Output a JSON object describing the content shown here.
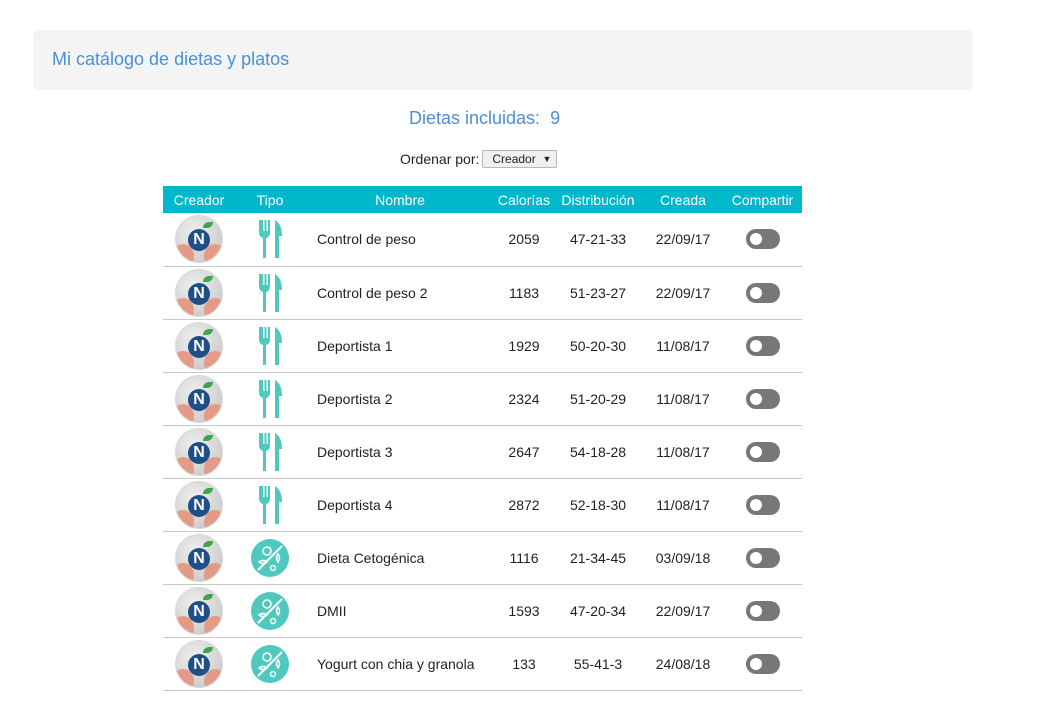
{
  "header": {
    "title": "Mi catálogo de dietas y platos"
  },
  "count": {
    "label": "Dietas incluidas:",
    "value": "9"
  },
  "sort": {
    "label": "Ordenar por:",
    "selected": "Creador"
  },
  "table": {
    "columns": [
      "Creador",
      "Tipo",
      "Nombre",
      "Calorías",
      "Distribución",
      "Creada",
      "Compartir"
    ],
    "rows": [
      {
        "type": "cutlery-icon",
        "name": "Control de peso",
        "calories": "2059",
        "distribution": "47-21-33",
        "created": "22/09/17",
        "shared": false
      },
      {
        "type": "cutlery-icon",
        "name": "Control de peso 2",
        "calories": "1183",
        "distribution": "51-23-27",
        "created": "22/09/17",
        "shared": false
      },
      {
        "type": "cutlery-icon",
        "name": "Deportista 1",
        "calories": "1929",
        "distribution": "50-20-30",
        "created": "11/08/17",
        "shared": false
      },
      {
        "type": "cutlery-icon",
        "name": "Deportista 2",
        "calories": "2324",
        "distribution": "51-20-29",
        "created": "11/08/17",
        "shared": false
      },
      {
        "type": "cutlery-icon",
        "name": "Deportista 3",
        "calories": "2647",
        "distribution": "54-18-28",
        "created": "11/08/17",
        "shared": false
      },
      {
        "type": "cutlery-icon",
        "name": "Deportista 4",
        "calories": "2872",
        "distribution": "52-18-30",
        "created": "11/08/17",
        "shared": false
      },
      {
        "type": "food-group-icon",
        "name": "Dieta Cetogénica",
        "calories": "1116",
        "distribution": "21-34-45",
        "created": "03/09/18",
        "shared": false
      },
      {
        "type": "food-group-icon",
        "name": "DMII",
        "calories": "1593",
        "distribution": "47-20-34",
        "created": "22/09/17",
        "shared": false
      },
      {
        "type": "food-group-icon",
        "name": "Yogurt con chia y granola",
        "calories": "133",
        "distribution": "55-41-3",
        "created": "24/08/18",
        "shared": false
      }
    ]
  },
  "colors": {
    "accent": "#00b8cc",
    "title": "#4a90d9",
    "icon": "#4fc9bd"
  }
}
